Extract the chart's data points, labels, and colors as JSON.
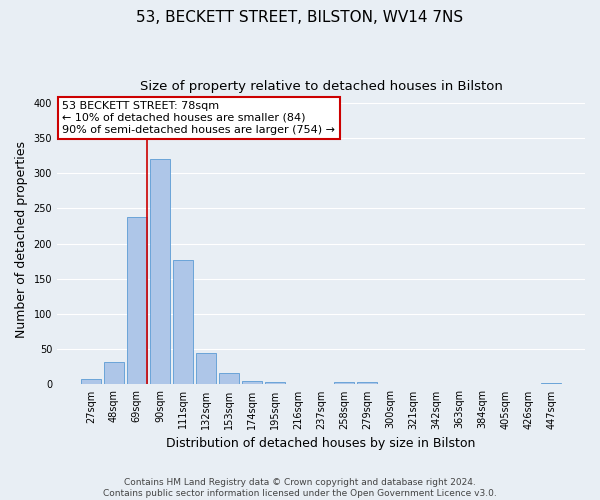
{
  "title": "53, BECKETT STREET, BILSTON, WV14 7NS",
  "subtitle": "Size of property relative to detached houses in Bilston",
  "xlabel": "Distribution of detached houses by size in Bilston",
  "ylabel": "Number of detached properties",
  "bar_labels": [
    "27sqm",
    "48sqm",
    "69sqm",
    "90sqm",
    "111sqm",
    "132sqm",
    "153sqm",
    "174sqm",
    "195sqm",
    "216sqm",
    "237sqm",
    "258sqm",
    "279sqm",
    "300sqm",
    "321sqm",
    "342sqm",
    "363sqm",
    "384sqm",
    "405sqm",
    "426sqm",
    "447sqm"
  ],
  "bar_values": [
    8,
    32,
    238,
    320,
    176,
    45,
    16,
    5,
    3,
    0,
    0,
    4,
    3,
    0,
    0,
    0,
    0,
    0,
    0,
    0,
    2
  ],
  "bar_color": "#aec6e8",
  "bar_edge_color": "#5b9bd5",
  "bg_color": "#e8eef4",
  "grid_color": "#ffffff",
  "vline_color": "#cc0000",
  "annotation_lines": [
    "53 BECKETT STREET: 78sqm",
    "← 10% of detached houses are smaller (84)",
    "90% of semi-detached houses are larger (754) →"
  ],
  "annotation_box_color": "#ffffff",
  "annotation_box_edge": "#cc0000",
  "ylim": [
    0,
    410
  ],
  "yticks": [
    0,
    50,
    100,
    150,
    200,
    250,
    300,
    350,
    400
  ],
  "footer_line1": "Contains HM Land Registry data © Crown copyright and database right 2024.",
  "footer_line2": "Contains public sector information licensed under the Open Government Licence v3.0.",
  "title_fontsize": 11,
  "subtitle_fontsize": 9.5,
  "axis_label_fontsize": 9,
  "tick_fontsize": 7,
  "annotation_fontsize": 8,
  "footer_fontsize": 6.5
}
